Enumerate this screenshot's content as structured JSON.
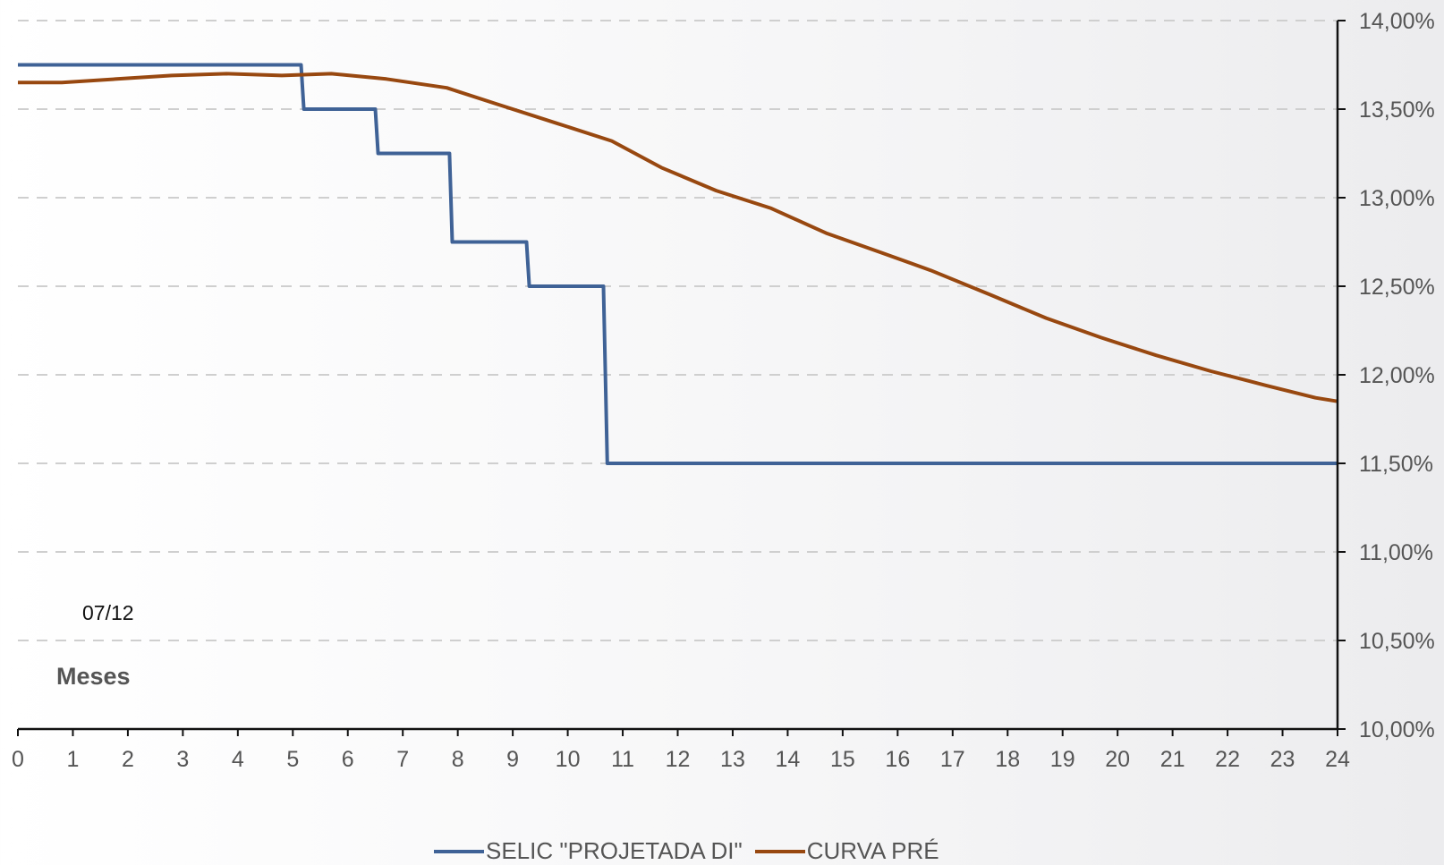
{
  "chart_data": {
    "type": "line",
    "title": "",
    "xlabel": "Meses",
    "ylabel": "",
    "annotation": "07/12",
    "xlim": [
      0,
      24
    ],
    "ylim": [
      10.0,
      14.0
    ],
    "x_ticks": [
      "0",
      "1",
      "2",
      "3",
      "4",
      "5",
      "6",
      "7",
      "8",
      "9",
      "10",
      "11",
      "12",
      "13",
      "14",
      "15",
      "16",
      "17",
      "18",
      "19",
      "20",
      "21",
      "22",
      "23",
      "24"
    ],
    "y_ticks": [
      "10,00%",
      "10,50%",
      "11,00%",
      "11,50%",
      "12,00%",
      "12,50%",
      "13,00%",
      "13,50%",
      "14,00%"
    ],
    "y_tick_values": [
      10.0,
      10.5,
      11.0,
      11.5,
      12.0,
      12.5,
      13.0,
      13.5,
      14.0
    ],
    "grid": "horizontal dashed",
    "y_axis_position": "right",
    "legend_position": "bottom",
    "series": [
      {
        "name": "SELIC \"PROJETADA DI\"",
        "color": "#3F6296",
        "points": [
          [
            0,
            13.75
          ],
          [
            5.15,
            13.75
          ],
          [
            5.2,
            13.5
          ],
          [
            6.5,
            13.5
          ],
          [
            6.55,
            13.25
          ],
          [
            7.85,
            13.25
          ],
          [
            7.9,
            12.75
          ],
          [
            9.25,
            12.75
          ],
          [
            9.3,
            12.5
          ],
          [
            10.65,
            12.5
          ],
          [
            10.72,
            11.5
          ],
          [
            24,
            11.5
          ]
        ]
      },
      {
        "name": "CURVA PRÉ",
        "color": "#984810",
        "points": [
          [
            0,
            13.65
          ],
          [
            0.8,
            13.65
          ],
          [
            1.8,
            13.67
          ],
          [
            2.8,
            13.69
          ],
          [
            3.8,
            13.7
          ],
          [
            4.8,
            13.69
          ],
          [
            5.7,
            13.7
          ],
          [
            6.7,
            13.67
          ],
          [
            7.8,
            13.62
          ],
          [
            8.7,
            13.53
          ],
          [
            9.8,
            13.42
          ],
          [
            10.8,
            13.32
          ],
          [
            11.7,
            13.17
          ],
          [
            12.7,
            13.04
          ],
          [
            13.7,
            12.94
          ],
          [
            14.7,
            12.8
          ],
          [
            15.7,
            12.69
          ],
          [
            16.6,
            12.59
          ],
          [
            17.7,
            12.45
          ],
          [
            18.7,
            12.32
          ],
          [
            19.7,
            12.21
          ],
          [
            20.7,
            12.11
          ],
          [
            21.7,
            12.02
          ],
          [
            22.7,
            11.94
          ],
          [
            23.6,
            11.87
          ],
          [
            24,
            11.85
          ]
        ]
      }
    ]
  }
}
